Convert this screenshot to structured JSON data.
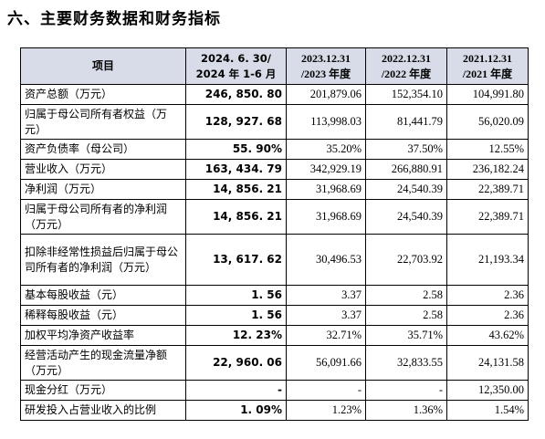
{
  "section_title": "六、主要财务数据和财务指标",
  "table": {
    "headers": {
      "item": "项目",
      "current_line1": "2024. 6. 30/",
      "current_line2": "2024 年 1-6 月",
      "y2023_line1": "2023.12.31",
      "y2023_line2": "/2023 年度",
      "y2022_line1": "2022.12.31",
      "y2022_line2": "/2022 年度",
      "y2021_line1": "2021.12.31",
      "y2021_line2": "/2021 年度"
    },
    "rows": [
      {
        "label": "资产总额（万元）",
        "current": "246, 850. 80",
        "y2023": "201,879.06",
        "y2022": "152,354.10",
        "y2021": "104,991.80"
      },
      {
        "label": "归属于母公司所有者权益（万元）",
        "current": "128, 927. 68",
        "y2023": "113,998.03",
        "y2022": "81,441.79",
        "y2021": "56,020.09"
      },
      {
        "label": "资产负债率（母公司）",
        "current": "55. 90%",
        "y2023": "35.20%",
        "y2022": "37.50%",
        "y2021": "12.55%"
      },
      {
        "label": "营业收入（万元）",
        "current": "163, 434. 79",
        "y2023": "342,929.19",
        "y2022": "266,880.91",
        "y2021": "236,182.24"
      },
      {
        "label": "净利润（万元）",
        "current": "14, 856. 21",
        "y2023": "31,968.69",
        "y2022": "24,540.39",
        "y2021": "22,389.71"
      },
      {
        "label": "归属于母公司所有者的净利润（万元）",
        "current": "14, 856. 21",
        "y2023": "31,968.69",
        "y2022": "24,540.39",
        "y2021": "22,389.71"
      },
      {
        "label": "扣除非经常性损益后归属于母公司所有者的净利润（万元）",
        "current": "13, 617. 62",
        "y2023": "30,496.53",
        "y2022": "22,703.92",
        "y2021": "21,193.34"
      },
      {
        "label": "基本每股收益（元）",
        "current": "1. 56",
        "y2023": "3.37",
        "y2022": "2.58",
        "y2021": "2.36"
      },
      {
        "label": "稀释每股收益（元）",
        "current": "1. 56",
        "y2023": "3.37",
        "y2022": "2.58",
        "y2021": "2.36"
      },
      {
        "label": "加权平均净资产收益率",
        "current": "12. 23%",
        "y2023": "32.71%",
        "y2022": "35.71%",
        "y2021": "43.62%"
      },
      {
        "label": "经营活动产生的现金流量净额（万元）",
        "current": "22, 960. 06",
        "y2023": "56,091.66",
        "y2022": "32,833.55",
        "y2021": "24,131.58"
      },
      {
        "label": "现金分红（万元）",
        "current": "-",
        "y2023": "-",
        "y2022": "-",
        "y2021": "12,350.00"
      },
      {
        "label": "研发投入占营业收入的比例",
        "current": "1. 09%",
        "y2023": "1.23%",
        "y2022": "1.36%",
        "y2021": "1.54%"
      }
    ]
  },
  "colors": {
    "header_background": "#d7dce8",
    "border": "#000000"
  }
}
